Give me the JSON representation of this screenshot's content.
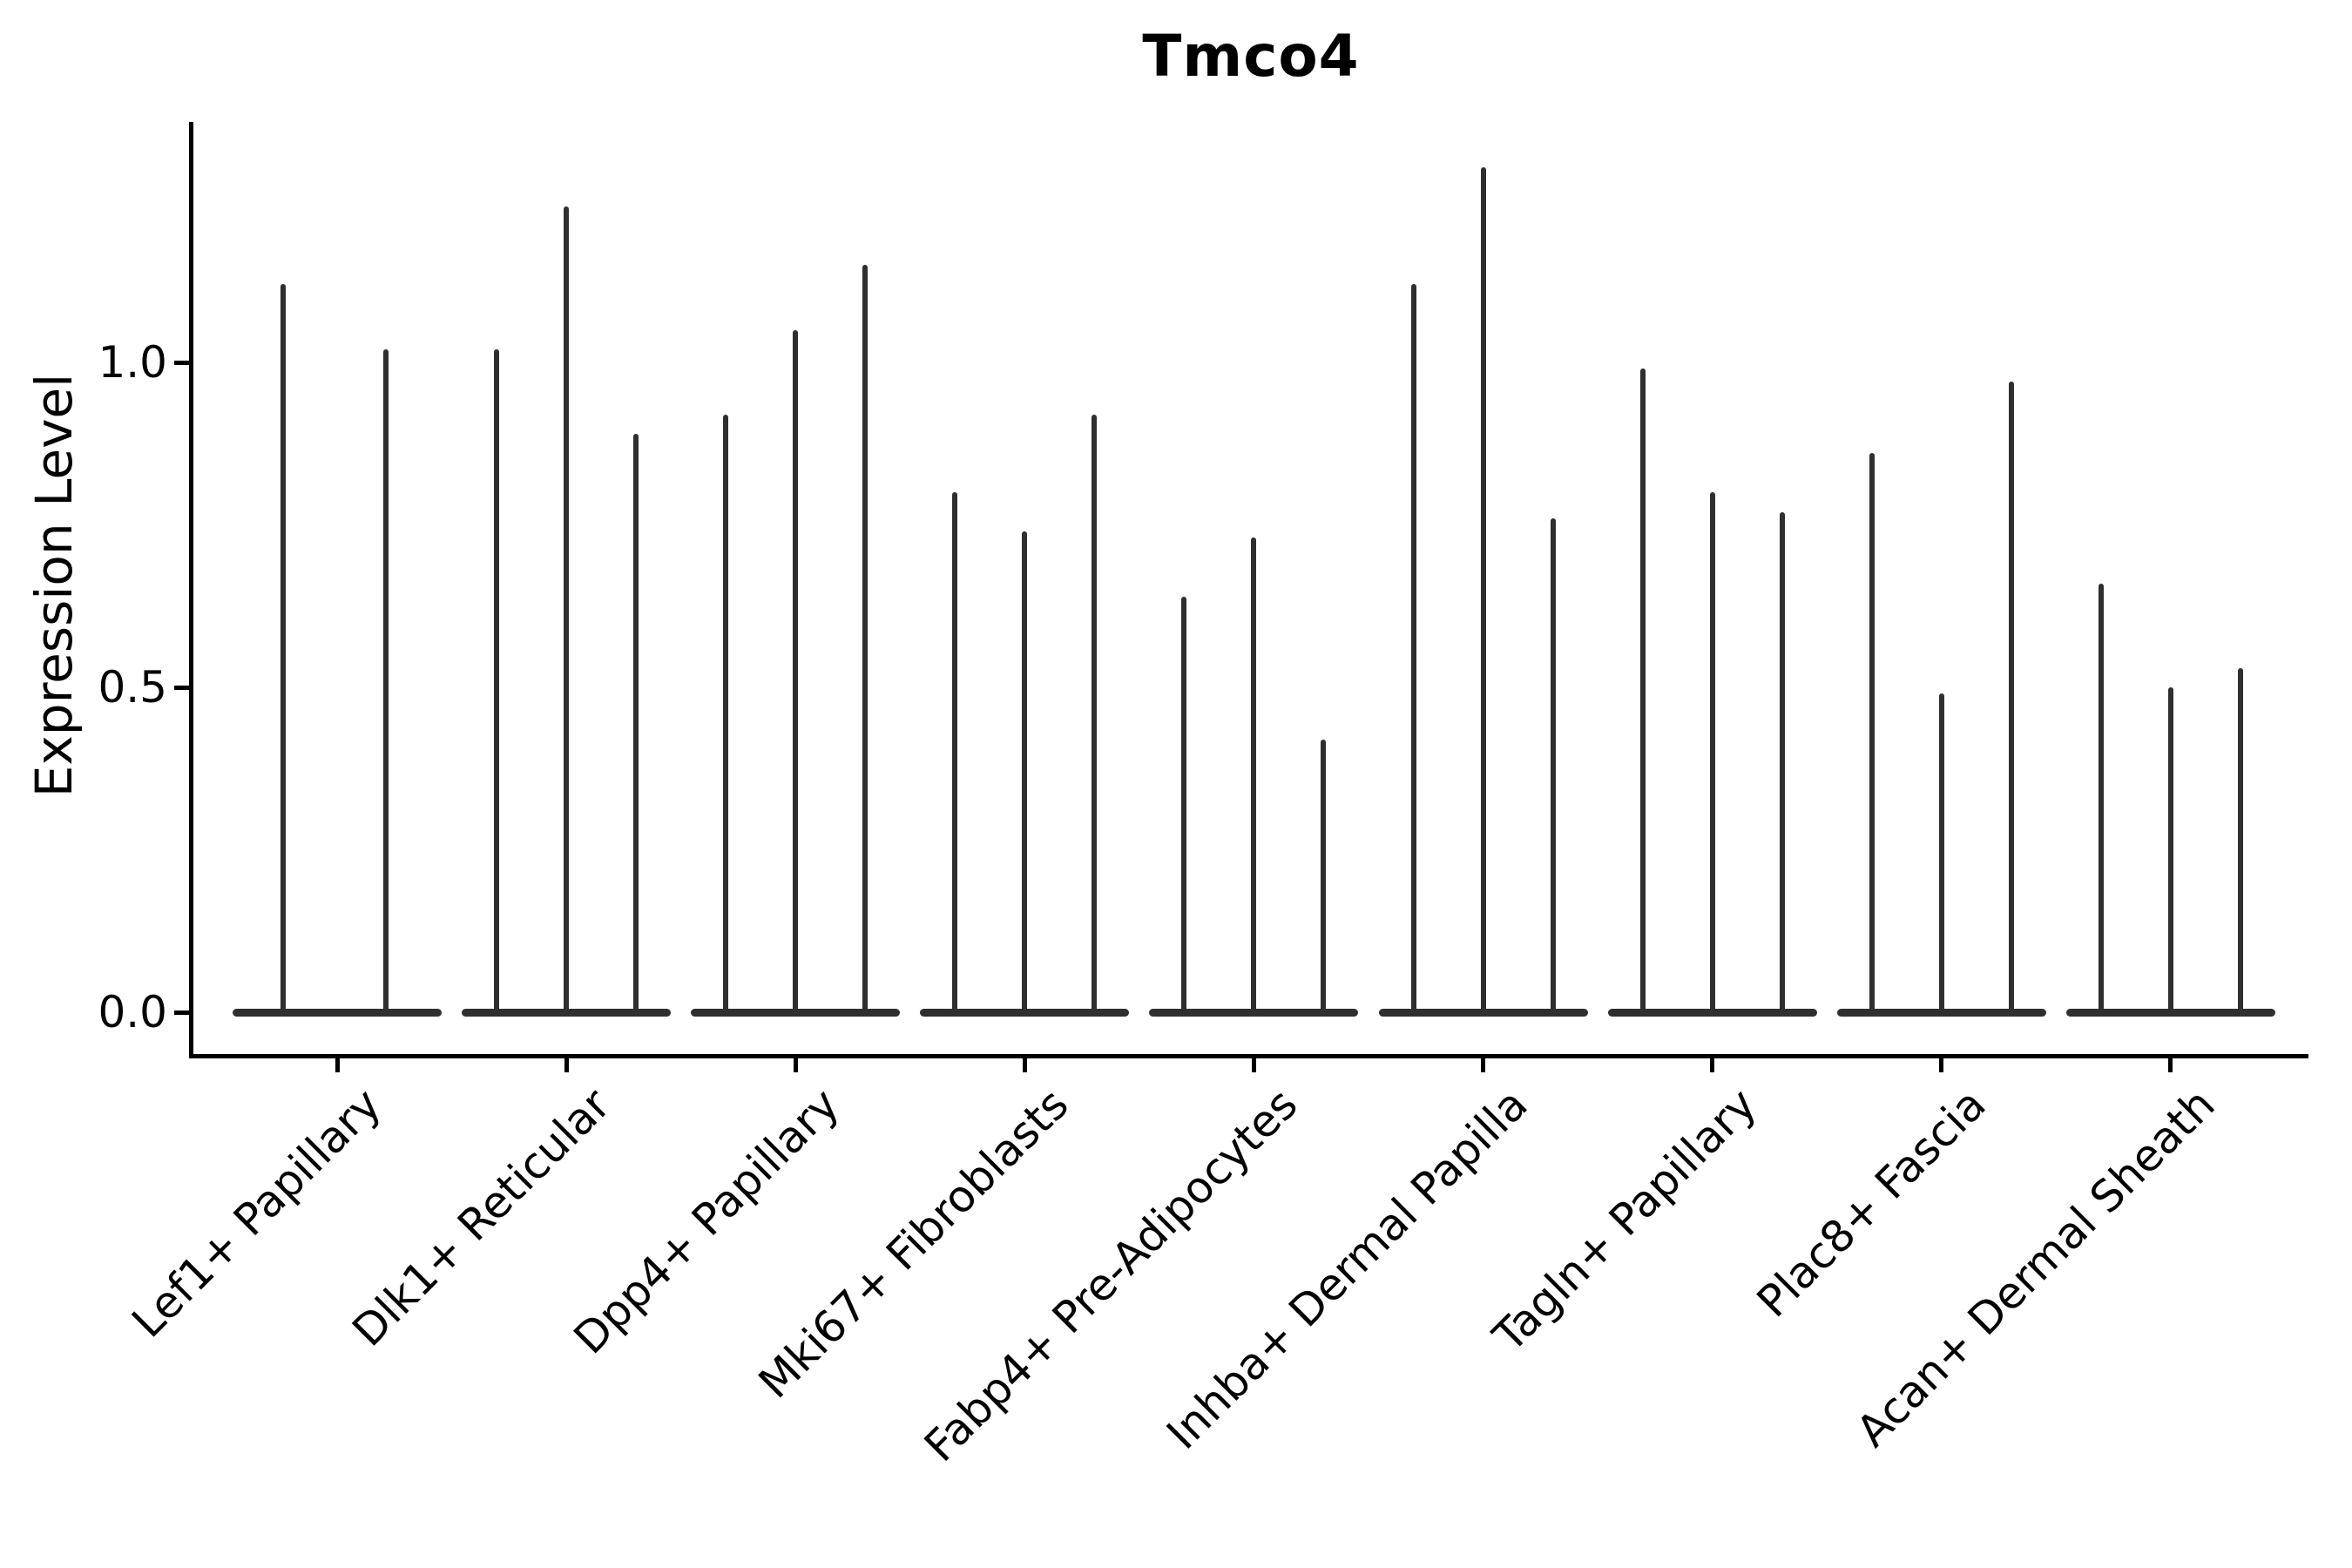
{
  "chart_data": {
    "type": "violin",
    "title": "Tmco4",
    "ylabel": "Expression Level",
    "xlabel": "",
    "legend_position": "none",
    "grid": false,
    "ylim": [
      -0.07,
      1.37
    ],
    "yticks": [
      {
        "label": "0.0",
        "value": 0.0
      },
      {
        "label": "0.5",
        "value": 0.5
      },
      {
        "label": "1.0",
        "value": 1.0
      }
    ],
    "categories": [
      "Lef1+ Papillary",
      "Dlk1+ Reticular",
      "Dpp4+ Papillary",
      "Mki67+ Fibroblasts",
      "Fabp4+ Pre-Adipocytes",
      "Inhba+ Dermal Papilla",
      "Tagln+ Papillary",
      "Plac8+ Fascia",
      "Acan+ Dermal Sheath"
    ],
    "groups": [
      {
        "category": "Lef1+ Papillary",
        "violin_maxima": [
          1.12,
          1.02
        ]
      },
      {
        "category": "Dlk1+ Reticular",
        "violin_maxima": [
          1.02,
          1.24,
          0.89
        ]
      },
      {
        "category": "Dpp4+ Papillary",
        "violin_maxima": [
          0.92,
          1.05,
          1.15
        ]
      },
      {
        "category": "Mki67+ Fibroblasts",
        "violin_maxima": [
          0.8,
          0.74,
          0.92
        ]
      },
      {
        "category": "Fabp4+ Pre-Adipocytes",
        "violin_maxima": [
          0.64,
          0.73,
          0.42
        ]
      },
      {
        "category": "Inhba+ Dermal Papilla",
        "violin_maxima": [
          1.12,
          1.3,
          0.76
        ]
      },
      {
        "category": "Tagln+ Papillary",
        "violin_maxima": [
          0.99,
          0.8,
          0.77
        ]
      },
      {
        "category": "Plac8+ Fascia",
        "violin_maxima": [
          0.86,
          0.49,
          0.97
        ]
      },
      {
        "category": "Acan+ Dermal Sheath",
        "violin_maxima": [
          0.66,
          0.5,
          0.53
        ]
      }
    ],
    "baseline_value": 0.0,
    "colors": {
      "violin": "#2f2f2f",
      "axis": "#000000",
      "text": "#000000",
      "background": "#ffffff"
    }
  }
}
